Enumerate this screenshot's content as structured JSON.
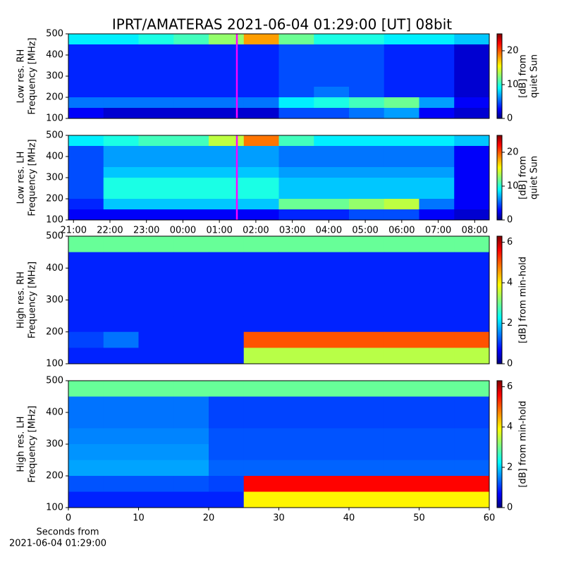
{
  "chart_data": [
    {
      "type": "heatmap",
      "title": "IPRT/AMATERAS 2021-06-04 01:29:00 [UT]   08bit",
      "ylabel": [
        "Low res. RH",
        "Frequency [MHz]"
      ],
      "ylim": [
        100,
        500
      ],
      "yticks": [
        100,
        200,
        300,
        400,
        500
      ],
      "xlim": [
        20.86,
        32.4
      ],
      "zlim": [
        0,
        25
      ],
      "cbar_ticks": [
        0,
        10,
        20
      ],
      "cbar_label": [
        "[dB] from",
        "quiet Sun"
      ],
      "marker": {
        "x": 25.48,
        "color": "#ff00ff"
      },
      "z": [
        [
          9,
          9,
          10,
          11,
          13,
          18,
          12,
          10,
          10,
          9,
          9,
          8
        ],
        [
          4,
          4,
          4,
          4,
          4,
          4,
          5,
          5,
          5,
          4,
          4,
          2
        ],
        [
          4,
          4,
          4,
          4,
          4,
          4,
          5,
          5,
          5,
          4,
          4,
          2
        ],
        [
          4,
          4,
          4,
          4,
          4,
          4,
          5,
          5,
          5,
          4,
          4,
          2
        ],
        [
          4,
          4,
          4,
          4,
          4,
          4,
          5,
          5,
          5,
          4,
          4,
          2
        ],
        [
          4,
          4,
          4,
          4,
          4,
          4,
          5,
          6,
          5,
          4,
          4,
          2
        ],
        [
          6,
          6,
          6,
          6,
          6,
          6,
          9,
          10,
          11,
          12,
          7,
          3
        ],
        [
          3,
          2,
          2,
          2,
          2,
          2,
          5,
          5,
          6,
          7,
          3,
          2
        ]
      ]
    },
    {
      "type": "heatmap",
      "ylabel": [
        "Low res. LH",
        "Frequency [MHz]"
      ],
      "ylim": [
        100,
        500
      ],
      "yticks": [
        100,
        200,
        300,
        400,
        500
      ],
      "xlim": [
        20.86,
        32.4
      ],
      "zlim": [
        0,
        25
      ],
      "cbar_ticks": [
        0,
        10,
        20
      ],
      "cbar_label": [
        "[dB] from",
        "quiet Sun"
      ],
      "marker": {
        "x": 25.48,
        "color": "#ff00ff"
      },
      "xticks": [
        {
          "value": 21,
          "label": "21:00"
        },
        {
          "value": 22,
          "label": "22:00"
        },
        {
          "value": 23,
          "label": "23:00"
        },
        {
          "value": 24,
          "label": "00:00"
        },
        {
          "value": 25,
          "label": "01:00"
        },
        {
          "value": 26,
          "label": "02:00"
        },
        {
          "value": 27,
          "label": "03:00"
        },
        {
          "value": 28,
          "label": "04:00"
        },
        {
          "value": 29,
          "label": "05:00"
        },
        {
          "value": 30,
          "label": "06:00"
        },
        {
          "value": 31,
          "label": "07:00"
        },
        {
          "value": 32,
          "label": "08:00"
        }
      ],
      "z": [
        [
          9,
          10,
          11,
          11,
          14,
          19,
          11,
          9,
          9,
          9,
          9,
          8
        ],
        [
          5,
          7,
          7,
          7,
          7,
          7,
          6,
          6,
          6,
          6,
          6,
          3
        ],
        [
          5,
          7,
          7,
          7,
          7,
          7,
          6,
          6,
          6,
          6,
          6,
          3
        ],
        [
          5,
          8,
          8,
          8,
          8,
          8,
          7,
          7,
          7,
          7,
          7,
          3
        ],
        [
          5,
          10,
          10,
          10,
          10,
          10,
          8,
          8,
          8,
          8,
          8,
          3
        ],
        [
          5,
          10,
          10,
          10,
          10,
          10,
          8,
          8,
          8,
          8,
          8,
          3
        ],
        [
          4,
          8,
          8,
          8,
          8,
          8,
          12,
          12,
          13,
          14,
          6,
          3
        ],
        [
          3,
          3,
          3,
          3,
          3,
          3,
          4,
          4,
          5,
          5,
          3,
          2
        ]
      ]
    },
    {
      "type": "heatmap",
      "ylabel": [
        "High res. RH",
        "Frequency [MHz]"
      ],
      "ylim": [
        100,
        500
      ],
      "yticks": [
        100,
        200,
        300,
        400,
        500
      ],
      "xlim": [
        0,
        60
      ],
      "zlim": [
        0,
        6.3
      ],
      "cbar_ticks": [
        0,
        2,
        4,
        6
      ],
      "cbar_label": [
        "[dB] from min-hold"
      ],
      "z": [
        [
          3,
          3,
          3,
          3,
          3,
          3,
          3,
          3,
          3,
          3,
          3,
          3
        ],
        [
          1,
          1,
          1,
          1,
          1,
          1,
          1,
          1,
          1,
          1,
          1,
          1
        ],
        [
          1,
          1,
          1,
          1,
          1,
          1,
          1,
          1,
          1,
          1,
          1,
          1
        ],
        [
          1,
          1,
          1,
          1,
          1,
          1,
          1,
          1,
          1,
          1,
          1,
          1
        ],
        [
          1,
          1,
          1,
          1,
          1,
          1,
          1,
          1,
          1,
          1,
          1,
          1
        ],
        [
          1,
          1,
          1,
          1,
          1,
          1,
          1,
          1,
          1,
          1,
          1,
          1
        ],
        [
          1.2,
          1.5,
          1,
          1,
          1,
          5,
          5,
          5,
          5,
          5,
          5,
          5
        ],
        [
          1,
          1,
          1,
          1,
          1,
          3.5,
          3.5,
          3.5,
          3.5,
          3.5,
          3.5,
          3.5
        ]
      ]
    },
    {
      "type": "heatmap",
      "ylabel": [
        "High res. LH",
        "Frequency [MHz]"
      ],
      "ylim": [
        100,
        500
      ],
      "yticks": [
        100,
        200,
        300,
        400,
        500
      ],
      "xlim": [
        0,
        60
      ],
      "zlim": [
        0,
        6.3
      ],
      "cbar_ticks": [
        0,
        2,
        4,
        6
      ],
      "cbar_label": [
        "[dB] from min-hold"
      ],
      "xticks": [
        0,
        10,
        20,
        30,
        40,
        50,
        60
      ],
      "xlabel": [
        "Seconds from",
        "2021-06-04 01:29:00"
      ],
      "z": [
        [
          3,
          3,
          3,
          3,
          3,
          3,
          3,
          3,
          3,
          3,
          3,
          3
        ],
        [
          1.5,
          1.5,
          1.5,
          1.5,
          1.2,
          1.2,
          1.2,
          1.2,
          1.2,
          1.2,
          1.2,
          1.2
        ],
        [
          1.5,
          1.5,
          1.5,
          1.5,
          1.2,
          1.2,
          1.2,
          1.2,
          1.2,
          1.2,
          1.2,
          1.2
        ],
        [
          1.6,
          1.6,
          1.6,
          1.6,
          1.3,
          1.3,
          1.3,
          1.3,
          1.3,
          1.3,
          1.3,
          1.3
        ],
        [
          1.7,
          1.7,
          1.7,
          1.7,
          1.3,
          1.3,
          1.3,
          1.3,
          1.3,
          1.3,
          1.3,
          1.3
        ],
        [
          1.8,
          1.8,
          1.8,
          1.8,
          1.4,
          1.4,
          1.4,
          1.4,
          1.4,
          1.4,
          1.4,
          1.4
        ],
        [
          1.3,
          1.3,
          1.3,
          1.3,
          1.2,
          5.5,
          5.5,
          5.5,
          5.5,
          5.5,
          5.5,
          5.5
        ],
        [
          1,
          1,
          1,
          1,
          1,
          4,
          4,
          4,
          4,
          4,
          4,
          4
        ]
      ]
    }
  ]
}
